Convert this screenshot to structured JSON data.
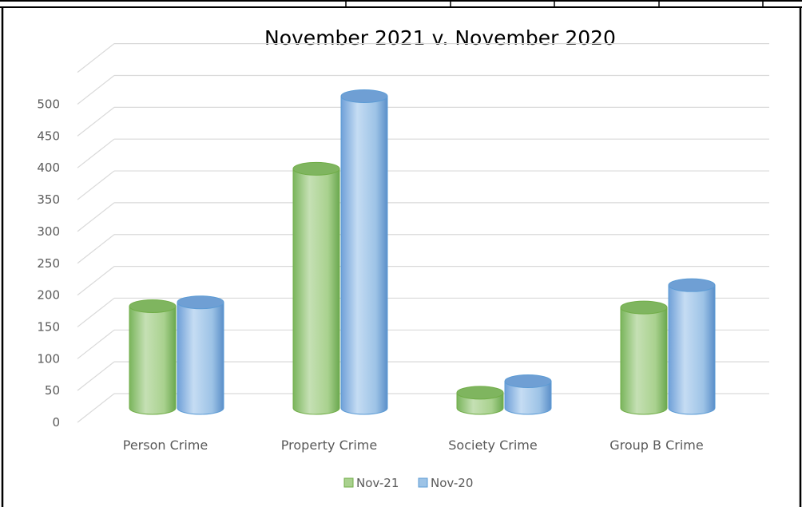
{
  "chart_data": {
    "type": "bar",
    "title": "November 2021 v. November 2020",
    "categories": [
      "Person Crime",
      "Property Crime",
      "Society Crime",
      "Group B Crime"
    ],
    "series": [
      {
        "name": "Nov-21",
        "values": [
          160,
          376,
          24,
          158
        ],
        "color": "#a9d18e"
      },
      {
        "name": "Nov-20",
        "values": [
          166,
          490,
          42,
          193
        ],
        "color": "#9dc3e6"
      }
    ],
    "y_ticks": [
      "0",
      "50",
      "100",
      "150",
      "200",
      "250",
      "300",
      "350",
      "400",
      "450",
      "500"
    ],
    "ylim": [
      0,
      550
    ],
    "grid": true,
    "legend_position": "bottom"
  }
}
